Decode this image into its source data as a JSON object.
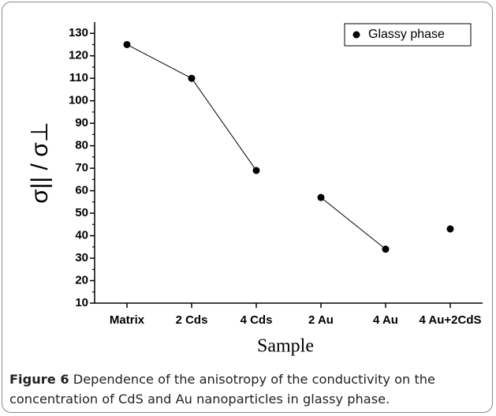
{
  "chart_data": {
    "type": "line",
    "xlabel": "Sample",
    "ylabel": "σ|| / σ⊥",
    "categories": [
      "Matrix",
      "2 Cds",
      "4 Cds",
      "2 Au",
      "4 Au",
      "4 Au+2CdS"
    ],
    "series": [
      {
        "name": "Glassy phase",
        "color": "#000000",
        "values": [
          125,
          110,
          69,
          57,
          34,
          43
        ]
      }
    ],
    "connect": [
      true,
      true,
      false,
      true,
      false
    ],
    "ylim": [
      10,
      135
    ],
    "yticks": [
      10,
      20,
      30,
      40,
      50,
      60,
      70,
      80,
      90,
      100,
      110,
      120,
      130
    ],
    "minor_ticks": true,
    "legend": "upper right",
    "grid": false
  },
  "figure": {
    "label": "Figure 6",
    "caption": "Dependence of the anisotropy of the conductivity on the concentration of CdS and Au nanoparticles in glassy phase."
  }
}
